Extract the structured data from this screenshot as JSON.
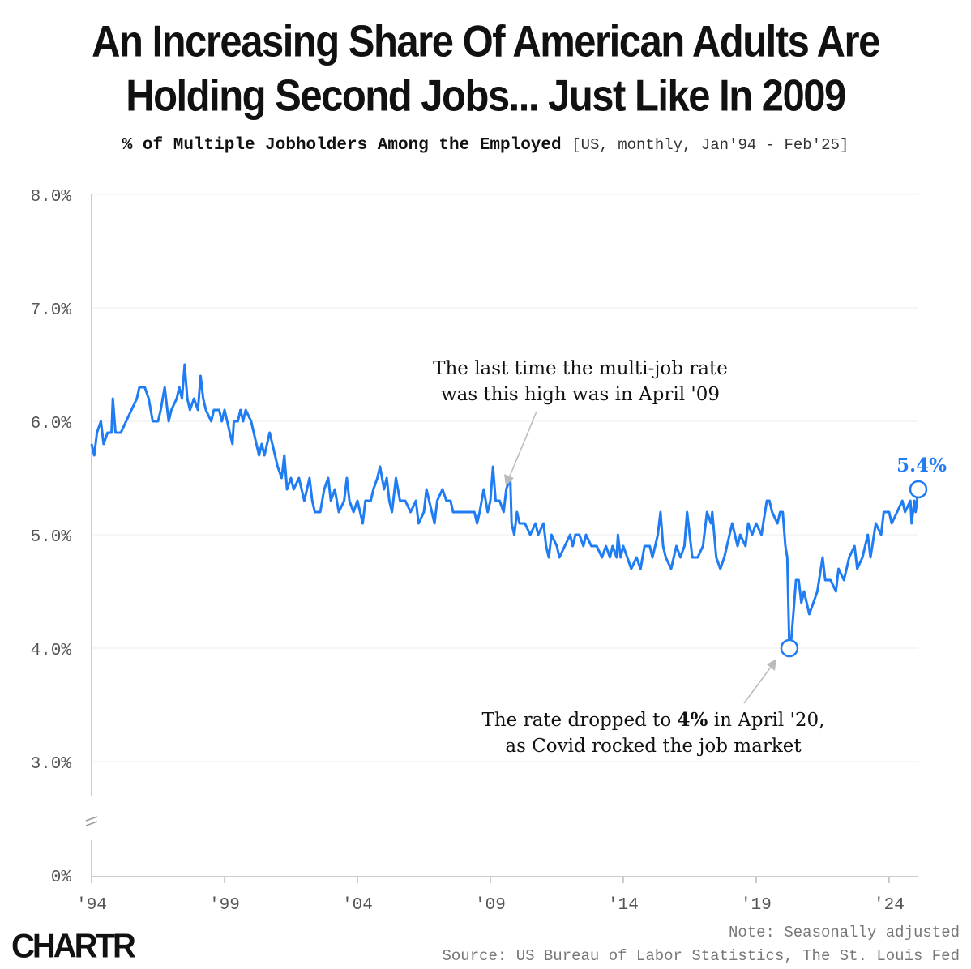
{
  "title_line1": "An Increasing Share Of American Adults Are",
  "title_line2": "Holding Second Jobs... Just Like In 2009",
  "subtitle": "% of Multiple Jobholders Among the Employed",
  "subtitle_meta": "[US, monthly, Jan'94 - Feb'25]",
  "note": "Note: Seasonally adjusted",
  "source": "Source: US Bureau of Labor Statistics, The St. Louis Fed",
  "brand": "CHARTR",
  "colors": {
    "line": "#1f7cf2",
    "axis": "#bbbbbb",
    "grid": "#eeeeee",
    "arrow": "#bbbbbb"
  },
  "chart_data": {
    "type": "line",
    "title": "An Increasing Share Of American Adults Are Holding Second Jobs... Just Like In 2009",
    "subtitle": "% of Multiple Jobholders Among the Employed [US, monthly, Jan'94 - Feb'25]",
    "xlabel": "",
    "ylabel": "",
    "x_range": [
      1994.0,
      2025.1
    ],
    "y_ticks": [
      "0%",
      "3.0%",
      "4.0%",
      "5.0%",
      "6.0%",
      "7.0%",
      "8.0%"
    ],
    "x_ticks": [
      {
        "year": 1994,
        "label": "'94"
      },
      {
        "year": 1999,
        "label": "'99"
      },
      {
        "year": 2004,
        "label": "'04"
      },
      {
        "year": 2009,
        "label": "'09"
      },
      {
        "year": 2014,
        "label": "'14"
      },
      {
        "year": 2019,
        "label": "'19"
      },
      {
        "year": 2024,
        "label": "'24"
      }
    ],
    "axis_break": "between 0% and 3.0%",
    "series": [
      {
        "name": "% of Multiple Jobholders Among the Employed",
        "points": [
          [
            1994.0,
            5.8
          ],
          [
            1994.1,
            5.7
          ],
          [
            1994.2,
            5.9
          ],
          [
            1994.35,
            6.0
          ],
          [
            1994.45,
            5.8
          ],
          [
            1994.6,
            5.9
          ],
          [
            1994.75,
            5.9
          ],
          [
            1994.8,
            6.2
          ],
          [
            1994.9,
            5.9
          ],
          [
            1995.1,
            5.9
          ],
          [
            1995.3,
            6.0
          ],
          [
            1995.5,
            6.1
          ],
          [
            1995.7,
            6.2
          ],
          [
            1995.8,
            6.3
          ],
          [
            1996.0,
            6.3
          ],
          [
            1996.15,
            6.2
          ],
          [
            1996.3,
            6.0
          ],
          [
            1996.5,
            6.0
          ],
          [
            1996.6,
            6.1
          ],
          [
            1996.75,
            6.3
          ],
          [
            1996.9,
            6.0
          ],
          [
            1997.0,
            6.1
          ],
          [
            1997.2,
            6.2
          ],
          [
            1997.3,
            6.3
          ],
          [
            1997.4,
            6.2
          ],
          [
            1997.5,
            6.5
          ],
          [
            1997.6,
            6.2
          ],
          [
            1997.7,
            6.1
          ],
          [
            1997.85,
            6.2
          ],
          [
            1998.0,
            6.1
          ],
          [
            1998.1,
            6.4
          ],
          [
            1998.2,
            6.2
          ],
          [
            1998.3,
            6.1
          ],
          [
            1998.5,
            6.0
          ],
          [
            1998.6,
            6.1
          ],
          [
            1998.8,
            6.1
          ],
          [
            1998.9,
            6.0
          ],
          [
            1999.0,
            6.1
          ],
          [
            1999.1,
            6.0
          ],
          [
            1999.2,
            5.9
          ],
          [
            1999.3,
            5.8
          ],
          [
            1999.35,
            6.0
          ],
          [
            1999.5,
            6.0
          ],
          [
            1999.6,
            6.1
          ],
          [
            1999.7,
            6.0
          ],
          [
            1999.8,
            6.1
          ],
          [
            2000.0,
            6.0
          ],
          [
            2000.1,
            5.9
          ],
          [
            2000.2,
            5.8
          ],
          [
            2000.3,
            5.7
          ],
          [
            2000.4,
            5.8
          ],
          [
            2000.5,
            5.7
          ],
          [
            2000.6,
            5.8
          ],
          [
            2000.7,
            5.9
          ],
          [
            2000.8,
            5.8
          ],
          [
            2000.9,
            5.7
          ],
          [
            2001.0,
            5.6
          ],
          [
            2001.15,
            5.5
          ],
          [
            2001.25,
            5.7
          ],
          [
            2001.35,
            5.4
          ],
          [
            2001.5,
            5.5
          ],
          [
            2001.6,
            5.4
          ],
          [
            2001.8,
            5.5
          ],
          [
            2002.0,
            5.3
          ],
          [
            2002.1,
            5.4
          ],
          [
            2002.2,
            5.5
          ],
          [
            2002.3,
            5.3
          ],
          [
            2002.4,
            5.2
          ],
          [
            2002.6,
            5.2
          ],
          [
            2002.75,
            5.4
          ],
          [
            2002.9,
            5.5
          ],
          [
            2003.0,
            5.3
          ],
          [
            2003.15,
            5.4
          ],
          [
            2003.3,
            5.2
          ],
          [
            2003.5,
            5.3
          ],
          [
            2003.6,
            5.5
          ],
          [
            2003.7,
            5.3
          ],
          [
            2003.85,
            5.2
          ],
          [
            2004.0,
            5.3
          ],
          [
            2004.1,
            5.2
          ],
          [
            2004.2,
            5.1
          ],
          [
            2004.3,
            5.3
          ],
          [
            2004.5,
            5.3
          ],
          [
            2004.6,
            5.4
          ],
          [
            2004.75,
            5.5
          ],
          [
            2004.85,
            5.6
          ],
          [
            2005.0,
            5.4
          ],
          [
            2005.1,
            5.5
          ],
          [
            2005.2,
            5.3
          ],
          [
            2005.3,
            5.2
          ],
          [
            2005.45,
            5.5
          ],
          [
            2005.6,
            5.3
          ],
          [
            2005.8,
            5.3
          ],
          [
            2006.0,
            5.2
          ],
          [
            2006.2,
            5.3
          ],
          [
            2006.3,
            5.1
          ],
          [
            2006.5,
            5.2
          ],
          [
            2006.6,
            5.4
          ],
          [
            2006.8,
            5.2
          ],
          [
            2006.9,
            5.1
          ],
          [
            2007.0,
            5.3
          ],
          [
            2007.2,
            5.4
          ],
          [
            2007.35,
            5.3
          ],
          [
            2007.5,
            5.3
          ],
          [
            2007.6,
            5.2
          ],
          [
            2007.8,
            5.2
          ],
          [
            2008.0,
            5.2
          ],
          [
            2008.2,
            5.2
          ],
          [
            2008.4,
            5.2
          ],
          [
            2008.5,
            5.1
          ],
          [
            2008.6,
            5.2
          ],
          [
            2008.75,
            5.4
          ],
          [
            2008.9,
            5.2
          ],
          [
            2009.0,
            5.3
          ],
          [
            2009.1,
            5.6
          ],
          [
            2009.2,
            5.3
          ],
          [
            2009.35,
            5.3
          ],
          [
            2009.5,
            5.2
          ],
          [
            2009.6,
            5.4
          ],
          [
            2009.75,
            5.5
          ],
          [
            2009.8,
            5.1
          ],
          [
            2009.9,
            5.0
          ],
          [
            2010.0,
            5.2
          ],
          [
            2010.1,
            5.1
          ],
          [
            2010.3,
            5.1
          ],
          [
            2010.5,
            5.0
          ],
          [
            2010.7,
            5.1
          ],
          [
            2010.8,
            5.0
          ],
          [
            2011.0,
            5.1
          ],
          [
            2011.1,
            4.9
          ],
          [
            2011.2,
            4.8
          ],
          [
            2011.3,
            5.0
          ],
          [
            2011.5,
            4.9
          ],
          [
            2011.6,
            4.8
          ],
          [
            2011.8,
            4.9
          ],
          [
            2012.0,
            5.0
          ],
          [
            2012.1,
            4.9
          ],
          [
            2012.2,
            5.0
          ],
          [
            2012.35,
            5.0
          ],
          [
            2012.5,
            4.9
          ],
          [
            2012.6,
            5.0
          ],
          [
            2012.8,
            4.9
          ],
          [
            2013.0,
            4.9
          ],
          [
            2013.2,
            4.8
          ],
          [
            2013.35,
            4.9
          ],
          [
            2013.5,
            4.8
          ],
          [
            2013.6,
            4.9
          ],
          [
            2013.75,
            4.8
          ],
          [
            2013.8,
            5.0
          ],
          [
            2013.9,
            4.8
          ],
          [
            2014.0,
            4.9
          ],
          [
            2014.15,
            4.8
          ],
          [
            2014.3,
            4.7
          ],
          [
            2014.5,
            4.8
          ],
          [
            2014.65,
            4.7
          ],
          [
            2014.8,
            4.9
          ],
          [
            2015.0,
            4.9
          ],
          [
            2015.1,
            4.8
          ],
          [
            2015.3,
            5.0
          ],
          [
            2015.4,
            5.2
          ],
          [
            2015.5,
            4.9
          ],
          [
            2015.6,
            4.8
          ],
          [
            2015.8,
            4.7
          ],
          [
            2016.0,
            4.9
          ],
          [
            2016.15,
            4.8
          ],
          [
            2016.3,
            4.9
          ],
          [
            2016.4,
            5.2
          ],
          [
            2016.5,
            5.0
          ],
          [
            2016.6,
            4.8
          ],
          [
            2016.8,
            4.8
          ],
          [
            2017.0,
            4.9
          ],
          [
            2017.15,
            5.2
          ],
          [
            2017.3,
            5.1
          ],
          [
            2017.35,
            5.2
          ],
          [
            2017.5,
            4.8
          ],
          [
            2017.65,
            4.7
          ],
          [
            2017.8,
            4.8
          ],
          [
            2018.0,
            5.0
          ],
          [
            2018.1,
            5.1
          ],
          [
            2018.3,
            4.9
          ],
          [
            2018.4,
            5.0
          ],
          [
            2018.6,
            4.9
          ],
          [
            2018.7,
            5.1
          ],
          [
            2018.85,
            5.0
          ],
          [
            2019.0,
            5.1
          ],
          [
            2019.2,
            5.0
          ],
          [
            2019.4,
            5.3
          ],
          [
            2019.5,
            5.3
          ],
          [
            2019.6,
            5.2
          ],
          [
            2019.8,
            5.1
          ],
          [
            2019.9,
            5.2
          ],
          [
            2020.0,
            5.2
          ],
          [
            2020.1,
            4.9
          ],
          [
            2020.17,
            4.8
          ],
          [
            2020.25,
            4.0
          ],
          [
            2020.33,
            4.1
          ],
          [
            2020.5,
            4.6
          ],
          [
            2020.6,
            4.6
          ],
          [
            2020.7,
            4.4
          ],
          [
            2020.8,
            4.5
          ],
          [
            2021.0,
            4.3
          ],
          [
            2021.15,
            4.4
          ],
          [
            2021.3,
            4.5
          ],
          [
            2021.5,
            4.8
          ],
          [
            2021.6,
            4.6
          ],
          [
            2021.8,
            4.6
          ],
          [
            2022.0,
            4.5
          ],
          [
            2022.1,
            4.7
          ],
          [
            2022.3,
            4.6
          ],
          [
            2022.5,
            4.8
          ],
          [
            2022.7,
            4.9
          ],
          [
            2022.8,
            4.7
          ],
          [
            2023.0,
            4.8
          ],
          [
            2023.1,
            4.9
          ],
          [
            2023.2,
            5.0
          ],
          [
            2023.3,
            4.8
          ],
          [
            2023.5,
            5.1
          ],
          [
            2023.7,
            5.0
          ],
          [
            2023.8,
            5.2
          ],
          [
            2024.0,
            5.2
          ],
          [
            2024.1,
            5.1
          ],
          [
            2024.3,
            5.2
          ],
          [
            2024.5,
            5.3
          ],
          [
            2024.6,
            5.2
          ],
          [
            2024.8,
            5.3
          ],
          [
            2024.85,
            5.1
          ],
          [
            2024.95,
            5.3
          ],
          [
            2025.0,
            5.2
          ],
          [
            2025.1,
            5.4
          ]
        ]
      }
    ],
    "highlights": [
      {
        "x": 2020.25,
        "y": 4.0,
        "label": "April '20"
      },
      {
        "x": 2025.1,
        "y": 5.4,
        "label": "5.4%"
      }
    ],
    "annotations": [
      {
        "lines": [
          "The last time the multi-job rate",
          "was this high was in April '09"
        ],
        "target_x": 2009.25,
        "target_y": 5.45
      },
      {
        "lines": [
          "The rate dropped to ",
          "4%",
          " in April '20,",
          "as Covid rocked the job market"
        ],
        "target_x": 2020.1,
        "target_y": 3.9
      }
    ]
  }
}
